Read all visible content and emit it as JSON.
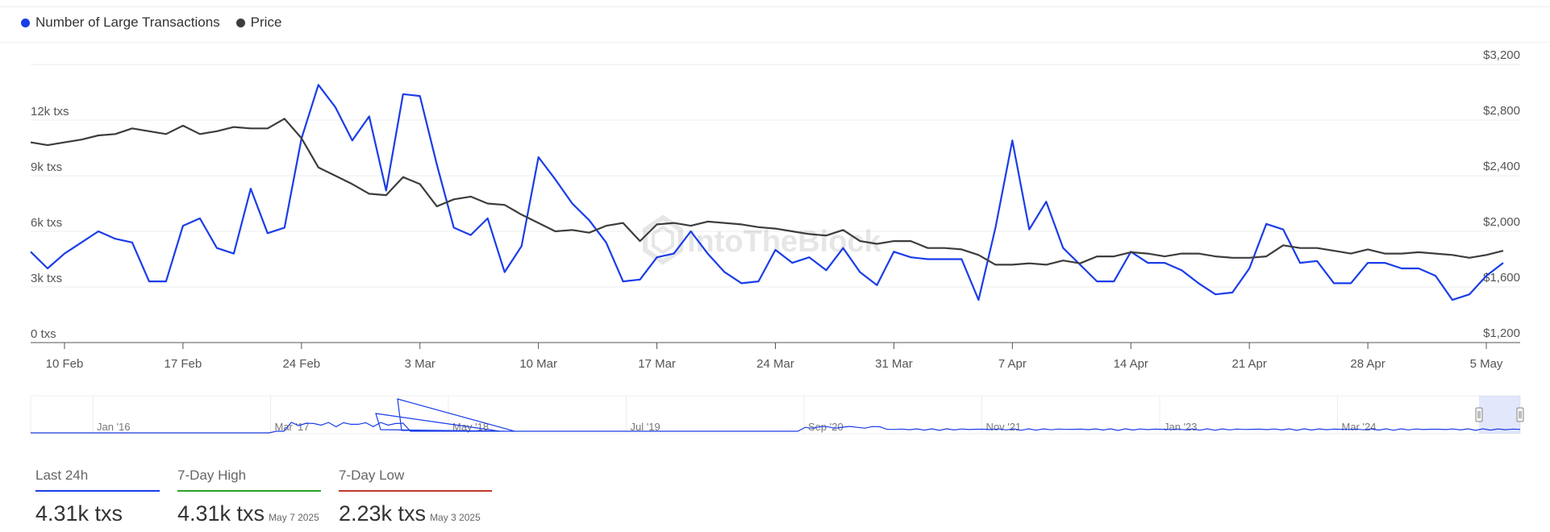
{
  "legend": [
    {
      "label": "Number of Large Transactions",
      "color": "#1a3de8"
    },
    {
      "label": "Price",
      "color": "#3d3d3d"
    }
  ],
  "watermark": "IntoTheBlock",
  "stats": [
    {
      "label": "Last 24h",
      "value": "4.31k txs",
      "date": "",
      "color": "#1a3de8"
    },
    {
      "label": "7-Day High",
      "value": "4.31k txs",
      "date": "May 7 2025",
      "color": "#2ca02c"
    },
    {
      "label": "7-Day Low",
      "value": "2.23k txs",
      "date": "May 3 2025",
      "color": "#c0392b"
    }
  ],
  "chart_data": {
    "type": "line",
    "x_tick_labels": [
      "10 Feb",
      "17 Feb",
      "24 Feb",
      "3 Mar",
      "10 Mar",
      "17 Mar",
      "24 Mar",
      "31 Mar",
      "7 Apr",
      "14 Apr",
      "21 Apr",
      "28 Apr",
      "5 May"
    ],
    "y_left_tick_labels": [
      "0 txs",
      "3k txs",
      "6k txs",
      "9k txs",
      "12k txs"
    ],
    "y_right_tick_labels": [
      "$1,200",
      "$1,600",
      "$2,000",
      "$2,400",
      "$2,800",
      "$3,200"
    ],
    "y_left_range": [
      0,
      15000
    ],
    "y_right_range": [
      1200,
      3200
    ],
    "x_start": "2025-02-08",
    "x_end": "2025-05-07",
    "series": [
      {
        "name": "Number of Large Transactions",
        "color": "#1a3de8",
        "axis": "left",
        "values": [
          4900,
          4000,
          4800,
          5400,
          6000,
          5600,
          5400,
          3300,
          3300,
          6300,
          6700,
          5100,
          4800,
          8300,
          5900,
          6200,
          11000,
          13900,
          12700,
          10900,
          12200,
          8200,
          13400,
          13300,
          9600,
          6200,
          5800,
          6700,
          3800,
          5200,
          10000,
          8800,
          7500,
          6600,
          5400,
          3300,
          3400,
          4600,
          4800,
          6000,
          4800,
          3800,
          3200,
          3300,
          5000,
          4300,
          4600,
          3900,
          5100,
          3800,
          3100,
          4900,
          4600,
          4500,
          4500,
          4500,
          2300,
          6200,
          10900,
          6100,
          7600,
          5100,
          4200,
          3300,
          3300,
          4900,
          4300,
          4300,
          3900,
          3200,
          2600,
          2700,
          4000,
          6400,
          6100,
          4300,
          4400,
          3200,
          3200,
          4300,
          4300,
          4000,
          4000,
          3600,
          2300,
          2600,
          3600,
          4300
        ]
      },
      {
        "name": "Price",
        "color": "#3d3d3d",
        "axis": "right",
        "values": [
          2640,
          2620,
          2640,
          2660,
          2690,
          2700,
          2740,
          2720,
          2700,
          2760,
          2700,
          2720,
          2750,
          2740,
          2740,
          2810,
          2670,
          2460,
          2400,
          2340,
          2270,
          2260,
          2390,
          2340,
          2180,
          2230,
          2250,
          2200,
          2190,
          2120,
          2060,
          2000,
          2010,
          1990,
          2040,
          2060,
          1930,
          2050,
          2060,
          2040,
          2070,
          2060,
          2050,
          2030,
          2020,
          2000,
          1980,
          1970,
          2010,
          1930,
          1910,
          1930,
          1930,
          1880,
          1880,
          1870,
          1830,
          1760,
          1760,
          1770,
          1760,
          1790,
          1770,
          1820,
          1820,
          1850,
          1840,
          1820,
          1840,
          1840,
          1820,
          1810,
          1810,
          1820,
          1900,
          1880,
          1880,
          1860,
          1840,
          1870,
          1840,
          1840,
          1850,
          1840,
          1830,
          1810,
          1830,
          1860
        ]
      }
    ],
    "navigator": {
      "labels": [
        "Jan '16",
        "Mar '17",
        "May '18",
        "Jul '19",
        "Sep '20",
        "Nov '21",
        "Jan '23",
        "Mar '24"
      ]
    }
  }
}
